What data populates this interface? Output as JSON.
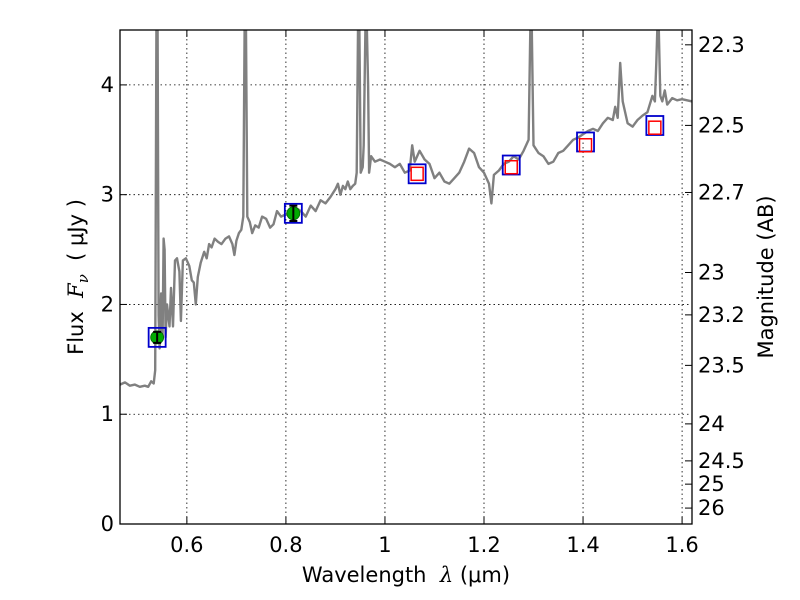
{
  "chart_data": {
    "type": "line",
    "xlabel": {
      "prefix": "Wavelength  ",
      "symbol": "λ",
      "unit": " (μm)"
    },
    "ylabel": {
      "prefix": "Flux  ",
      "symbol": "F",
      "subscript": "ν",
      "unit": "  ( μJy )"
    },
    "y2label": "Magnitude (AB)",
    "xlim": [
      0.465,
      1.62
    ],
    "ylim": [
      0,
      4.5
    ],
    "grid": true,
    "colors": {
      "spectrum": "#808080",
      "model": "#0000cc",
      "observed_hi": "#ff0000",
      "detection": "#00aa00",
      "errorbar": "#000000"
    },
    "x_ticks": [
      {
        "value": 0.6,
        "label": "0.6"
      },
      {
        "value": 0.8,
        "label": "0.8"
      },
      {
        "value": 1.0,
        "label": "1"
      },
      {
        "value": 1.2,
        "label": "1.2"
      },
      {
        "value": 1.4,
        "label": "1.4"
      },
      {
        "value": 1.6,
        "label": "1.6"
      }
    ],
    "y_ticks": [
      {
        "value": 0,
        "label": "0"
      },
      {
        "value": 1,
        "label": "1"
      },
      {
        "value": 2,
        "label": "2"
      },
      {
        "value": 3,
        "label": "3"
      },
      {
        "value": 4,
        "label": "4"
      }
    ],
    "mag_ticks": [
      {
        "label": "22.3",
        "flux": 4.365
      },
      {
        "label": "22.5",
        "flux": 3.631
      },
      {
        "label": "22.7",
        "flux": 3.02
      },
      {
        "label": "23",
        "flux": 2.291
      },
      {
        "label": "23.2",
        "flux": 1.905
      },
      {
        "label": "23.5",
        "flux": 1.445
      },
      {
        "label": "24",
        "flux": 0.912
      },
      {
        "label": "24.5",
        "flux": 0.575
      },
      {
        "label": "25",
        "flux": 0.363
      },
      {
        "label": "26",
        "flux": 0.145
      }
    ],
    "spectrum": [
      [
        0.465,
        1.27
      ],
      [
        0.475,
        1.29
      ],
      [
        0.485,
        1.26
      ],
      [
        0.495,
        1.27
      ],
      [
        0.505,
        1.25
      ],
      [
        0.515,
        1.26
      ],
      [
        0.522,
        1.25
      ],
      [
        0.528,
        1.3
      ],
      [
        0.533,
        1.28
      ],
      [
        0.536,
        1.4
      ],
      [
        0.5385,
        4.5
      ],
      [
        0.541,
        4.5
      ],
      [
        0.543,
        1.9
      ],
      [
        0.545,
        1.6
      ],
      [
        0.548,
        2.1
      ],
      [
        0.551,
        1.7
      ],
      [
        0.553,
        2.6
      ],
      [
        0.555,
        2.5
      ],
      [
        0.557,
        1.7
      ],
      [
        0.56,
        2.0
      ],
      [
        0.565,
        1.8
      ],
      [
        0.568,
        2.15
      ],
      [
        0.572,
        1.8
      ],
      [
        0.576,
        2.4
      ],
      [
        0.58,
        2.42
      ],
      [
        0.585,
        2.3
      ],
      [
        0.588,
        1.85
      ],
      [
        0.592,
        2.4
      ],
      [
        0.598,
        2.42
      ],
      [
        0.605,
        2.35
      ],
      [
        0.61,
        2.22
      ],
      [
        0.614,
        2.2
      ],
      [
        0.618,
        2.0
      ],
      [
        0.622,
        2.25
      ],
      [
        0.628,
        2.38
      ],
      [
        0.635,
        2.48
      ],
      [
        0.64,
        2.42
      ],
      [
        0.645,
        2.55
      ],
      [
        0.65,
        2.52
      ],
      [
        0.656,
        2.6
      ],
      [
        0.663,
        2.57
      ],
      [
        0.67,
        2.55
      ],
      [
        0.678,
        2.6
      ],
      [
        0.685,
        2.62
      ],
      [
        0.692,
        2.55
      ],
      [
        0.696,
        2.45
      ],
      [
        0.7,
        2.58
      ],
      [
        0.705,
        2.65
      ],
      [
        0.71,
        2.68
      ],
      [
        0.714,
        2.8
      ],
      [
        0.7165,
        4.5
      ],
      [
        0.7195,
        4.5
      ],
      [
        0.722,
        2.8
      ],
      [
        0.727,
        2.75
      ],
      [
        0.732,
        2.65
      ],
      [
        0.738,
        2.72
      ],
      [
        0.745,
        2.7
      ],
      [
        0.752,
        2.8
      ],
      [
        0.76,
        2.78
      ],
      [
        0.768,
        2.7
      ],
      [
        0.775,
        2.73
      ],
      [
        0.782,
        2.85
      ],
      [
        0.79,
        2.8
      ],
      [
        0.8,
        2.82
      ],
      [
        0.81,
        2.86
      ],
      [
        0.82,
        2.88
      ],
      [
        0.83,
        2.85
      ],
      [
        0.84,
        2.8
      ],
      [
        0.85,
        2.9
      ],
      [
        0.86,
        2.85
      ],
      [
        0.87,
        2.95
      ],
      [
        0.88,
        2.92
      ],
      [
        0.89,
        2.98
      ],
      [
        0.9,
        3.05
      ],
      [
        0.905,
        3.1
      ],
      [
        0.91,
        3.0
      ],
      [
        0.915,
        3.08
      ],
      [
        0.92,
        3.05
      ],
      [
        0.925,
        3.12
      ],
      [
        0.93,
        3.05
      ],
      [
        0.935,
        3.08
      ],
      [
        0.94,
        3.1
      ],
      [
        0.943,
        3.2
      ],
      [
        0.9455,
        4.5
      ],
      [
        0.9485,
        4.5
      ],
      [
        0.951,
        3.2
      ],
      [
        0.955,
        3.25
      ],
      [
        0.957,
        3.45
      ],
      [
        0.9605,
        4.5
      ],
      [
        0.9635,
        4.5
      ],
      [
        0.966,
        4.0
      ],
      [
        0.968,
        3.2
      ],
      [
        0.972,
        3.35
      ],
      [
        0.98,
        3.3
      ],
      [
        0.99,
        3.32
      ],
      [
        1.0,
        3.3
      ],
      [
        1.01,
        3.28
      ],
      [
        1.02,
        3.25
      ],
      [
        1.03,
        3.28
      ],
      [
        1.04,
        3.2
      ],
      [
        1.05,
        3.22
      ],
      [
        1.055,
        3.45
      ],
      [
        1.06,
        3.3
      ],
      [
        1.07,
        3.4
      ],
      [
        1.08,
        3.32
      ],
      [
        1.09,
        3.28
      ],
      [
        1.1,
        3.15
      ],
      [
        1.11,
        3.2
      ],
      [
        1.12,
        3.12
      ],
      [
        1.13,
        3.1
      ],
      [
        1.14,
        3.15
      ],
      [
        1.15,
        3.2
      ],
      [
        1.16,
        3.3
      ],
      [
        1.17,
        3.42
      ],
      [
        1.18,
        3.38
      ],
      [
        1.19,
        3.25
      ],
      [
        1.2,
        3.2
      ],
      [
        1.21,
        3.1
      ],
      [
        1.215,
        2.92
      ],
      [
        1.22,
        3.18
      ],
      [
        1.23,
        3.22
      ],
      [
        1.24,
        3.28
      ],
      [
        1.25,
        3.3
      ],
      [
        1.26,
        3.35
      ],
      [
        1.27,
        3.32
      ],
      [
        1.28,
        3.4
      ],
      [
        1.29,
        3.5
      ],
      [
        1.2935,
        4.5
      ],
      [
        1.2965,
        4.5
      ],
      [
        1.3,
        3.45
      ],
      [
        1.31,
        3.38
      ],
      [
        1.32,
        3.35
      ],
      [
        1.33,
        3.28
      ],
      [
        1.34,
        3.3
      ],
      [
        1.35,
        3.38
      ],
      [
        1.36,
        3.4
      ],
      [
        1.37,
        3.45
      ],
      [
        1.38,
        3.5
      ],
      [
        1.39,
        3.52
      ],
      [
        1.4,
        3.55
      ],
      [
        1.41,
        3.58
      ],
      [
        1.42,
        3.6
      ],
      [
        1.43,
        3.58
      ],
      [
        1.44,
        3.65
      ],
      [
        1.45,
        3.7
      ],
      [
        1.46,
        3.68
      ],
      [
        1.465,
        3.8
      ],
      [
        1.47,
        3.7
      ],
      [
        1.475,
        4.2
      ],
      [
        1.48,
        3.85
      ],
      [
        1.49,
        3.65
      ],
      [
        1.5,
        3.62
      ],
      [
        1.51,
        3.68
      ],
      [
        1.52,
        3.72
      ],
      [
        1.53,
        3.75
      ],
      [
        1.54,
        3.9
      ],
      [
        1.545,
        3.85
      ],
      [
        1.548,
        4.2
      ],
      [
        1.55,
        4.5
      ],
      [
        1.553,
        4.5
      ],
      [
        1.556,
        3.9
      ],
      [
        1.56,
        3.85
      ],
      [
        1.565,
        3.95
      ],
      [
        1.57,
        3.82
      ],
      [
        1.58,
        3.88
      ],
      [
        1.59,
        3.86
      ],
      [
        1.6,
        3.87
      ],
      [
        1.61,
        3.86
      ],
      [
        1.62,
        3.85
      ]
    ],
    "model_points": [
      {
        "x": 0.54,
        "y": 1.7
      },
      {
        "x": 0.815,
        "y": 2.83
      },
      {
        "x": 1.065,
        "y": 3.19
      },
      {
        "x": 1.255,
        "y": 3.27
      },
      {
        "x": 1.405,
        "y": 3.48
      },
      {
        "x": 1.545,
        "y": 3.63
      }
    ],
    "observed_points": [
      {
        "x": 1.065,
        "y": 3.19
      },
      {
        "x": 1.255,
        "y": 3.25
      },
      {
        "x": 1.405,
        "y": 3.45
      },
      {
        "x": 1.545,
        "y": 3.61
      }
    ],
    "detections": [
      {
        "x": 0.54,
        "y": 1.7,
        "err": 0.05
      },
      {
        "x": 0.815,
        "y": 2.83,
        "err": 0.07
      }
    ]
  }
}
